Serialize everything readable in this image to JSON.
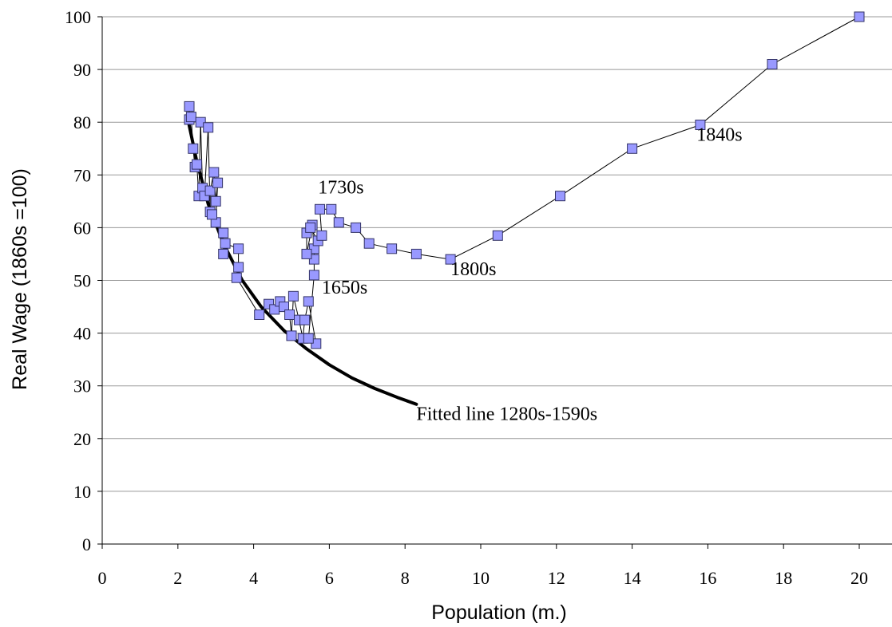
{
  "chart_data": {
    "type": "scatter",
    "title": "",
    "xlabel": "Population (m.)",
    "ylabel": "Real Wage (1860s =100)",
    "xlim": [
      0,
      21
    ],
    "ylim": [
      0,
      100
    ],
    "xticks": [
      0,
      2,
      4,
      6,
      8,
      10,
      12,
      14,
      16,
      18,
      20
    ],
    "yticks": [
      0,
      10,
      20,
      30,
      40,
      50,
      60,
      70,
      80,
      90,
      100
    ],
    "grid": "horizontal",
    "colors": {
      "marker_fill": "#9999ff",
      "marker_stroke": "#333366",
      "line": "#000000",
      "fitted": "#000000"
    },
    "series": [
      {
        "kind": "observed-path",
        "marker": "square",
        "x": [
          2.3,
          2.3,
          2.35,
          2.4,
          2.45,
          2.5,
          2.55,
          2.6,
          2.65,
          2.7,
          2.8,
          2.85,
          2.85,
          2.95,
          3.0,
          3.05,
          3.0,
          2.9,
          3.2,
          3.2,
          3.25,
          3.6,
          3.6,
          3.55,
          4.15,
          4.4,
          4.55,
          4.7,
          4.8,
          4.95,
          5.0,
          5.05,
          5.2,
          5.3,
          5.35,
          5.45,
          5.65,
          5.45,
          5.6,
          5.6,
          5.6,
          5.55,
          5.4,
          5.4,
          5.5,
          5.7,
          5.8,
          5.75,
          6.05,
          6.25,
          6.7,
          7.05,
          7.65,
          8.3,
          9.2,
          10.45,
          12.1,
          14.0,
          15.8,
          17.7,
          20.0
        ],
        "y": [
          83.0,
          80.5,
          81.0,
          75.0,
          71.5,
          72.0,
          66.0,
          80.0,
          67.5,
          66.0,
          79.0,
          63.0,
          67.0,
          70.5,
          65.0,
          68.5,
          61.0,
          62.5,
          59.0,
          55.0,
          57.0,
          56.0,
          52.5,
          50.5,
          43.5,
          45.5,
          44.5,
          46.0,
          45.0,
          43.5,
          39.5,
          47.0,
          42.5,
          39.0,
          42.5,
          46.0,
          38.0,
          39.0,
          51.0,
          54.0,
          56.0,
          60.5,
          55.0,
          59.0,
          60.0,
          57.5,
          58.5,
          63.5,
          63.5,
          61.0,
          60.0,
          57.0,
          56.0,
          55.0,
          54.0,
          58.5,
          66.0,
          75.0,
          79.5,
          91.0,
          100.0
        ]
      },
      {
        "kind": "fitted-curve",
        "x": [
          2.25,
          2.5,
          2.8,
          3.2,
          3.7,
          4.2,
          4.8,
          5.4,
          6.0,
          6.6,
          7.2,
          7.8,
          8.3
        ],
        "y": [
          81.0,
          72.5,
          64.5,
          57.0,
          50.0,
          45.0,
          40.5,
          37.0,
          34.0,
          31.5,
          29.5,
          27.8,
          26.5
        ]
      }
    ],
    "annotations": [
      {
        "text": "1730s",
        "x": 5.7,
        "y": 66.5
      },
      {
        "text": "1650s",
        "x": 5.8,
        "y": 47.5
      },
      {
        "text": "1800s",
        "x": 9.2,
        "y": 51.0
      },
      {
        "text": "1840s",
        "x": 15.7,
        "y": 76.5
      },
      {
        "text": "Fitted line 1280s-1590s",
        "x": 8.3,
        "y": 23.5
      }
    ]
  }
}
